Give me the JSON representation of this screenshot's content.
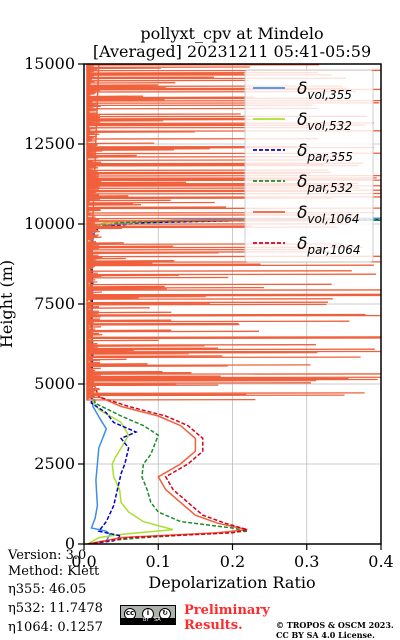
{
  "chart_data": {
    "type": "line",
    "title": "pollyxt_cpv at Mindelo",
    "subtitle": "[Averaged] 20231211 05:41-05:59",
    "xlabel": "Depolarization Ratio",
    "ylabel": "Height (m)",
    "xlim": [
      0.0,
      0.4
    ],
    "ylim": [
      0,
      15000
    ],
    "xticks": [
      "0.0",
      "0.1",
      "0.2",
      "0.3",
      "0.4"
    ],
    "yticks": [
      "0",
      "2500",
      "5000",
      "7500",
      "10000",
      "12500",
      "15000"
    ],
    "grid": true,
    "legend_position": "top-right",
    "series": [
      {
        "key": "vol355",
        "color": "#3b8fe5",
        "dash": "solid",
        "legend_base": "δ",
        "legend_sub": "vol,355",
        "points": [
          [
            0.005,
            0
          ],
          [
            0.03,
            100
          ],
          [
            0.035,
            300
          ],
          [
            0.03,
            400
          ],
          [
            0.01,
            500
          ],
          [
            0.015,
            800
          ],
          [
            0.018,
            1200
          ],
          [
            0.017,
            1600
          ],
          [
            0.016,
            2000
          ],
          [
            0.018,
            2500
          ],
          [
            0.02,
            3000
          ],
          [
            0.025,
            3300
          ],
          [
            0.03,
            3600
          ],
          [
            0.022,
            3900
          ],
          [
            0.012,
            4300
          ],
          [
            0.011,
            4700
          ],
          [
            0.011,
            5500
          ],
          [
            0.011,
            6500
          ],
          [
            0.011,
            7500
          ],
          [
            0.011,
            8500
          ],
          [
            0.011,
            9300
          ],
          [
            0.013,
            9700
          ],
          [
            0.02,
            9900
          ],
          [
            0.06,
            10050
          ],
          [
            0.12,
            10120
          ],
          [
            0.25,
            10160
          ],
          [
            0.4,
            10180
          ]
        ]
      },
      {
        "key": "vol532",
        "color": "#a8e030",
        "dash": "solid",
        "legend_base": "δ",
        "legend_sub": "vol,532",
        "points": [
          [
            0.005,
            0
          ],
          [
            0.02,
            200
          ],
          [
            0.05,
            300
          ],
          [
            0.12,
            450
          ],
          [
            0.08,
            700
          ],
          [
            0.06,
            1000
          ],
          [
            0.05,
            1300
          ],
          [
            0.048,
            1700
          ],
          [
            0.04,
            2100
          ],
          [
            0.038,
            2500
          ],
          [
            0.042,
            2700
          ],
          [
            0.05,
            3000
          ],
          [
            0.06,
            3400
          ],
          [
            0.05,
            3800
          ],
          [
            0.02,
            4200
          ],
          [
            0.008,
            4600
          ],
          [
            0.008,
            6000
          ],
          [
            0.008,
            8000
          ],
          [
            0.008,
            9500
          ],
          [
            0.009,
            9900
          ],
          [
            0.03,
            10050
          ],
          [
            0.15,
            10100
          ],
          [
            0.3,
            10120
          ],
          [
            0.4,
            10130
          ]
        ]
      },
      {
        "key": "par355",
        "color": "#0000d0",
        "dash": "dashed",
        "legend_base": "δ",
        "legend_sub": "par,355",
        "points": [
          [
            0.005,
            0
          ],
          [
            0.04,
            100
          ],
          [
            0.05,
            250
          ],
          [
            0.02,
            400
          ],
          [
            0.03,
            700
          ],
          [
            0.04,
            1200
          ],
          [
            0.045,
            1700
          ],
          [
            0.05,
            2200
          ],
          [
            0.055,
            2500
          ],
          [
            0.06,
            3000
          ],
          [
            0.05,
            3300
          ],
          [
            0.07,
            3500
          ],
          [
            0.04,
            3800
          ],
          [
            0.03,
            4100
          ],
          [
            0.01,
            4400
          ],
          [
            0.01,
            5000
          ],
          [
            0.012,
            6000
          ],
          [
            0.01,
            7000
          ],
          [
            0.012,
            8000
          ],
          [
            0.01,
            9000
          ],
          [
            0.011,
            9600
          ],
          [
            0.02,
            9900
          ],
          [
            0.08,
            10040
          ],
          [
            0.2,
            10100
          ],
          [
            0.4,
            10130
          ]
        ]
      },
      {
        "key": "par532",
        "color": "#1a8c2a",
        "dash": "dashed",
        "legend_base": "δ",
        "legend_sub": "par,532",
        "points": [
          [
            0.005,
            0
          ],
          [
            0.03,
            100
          ],
          [
            0.08,
            200
          ],
          [
            0.22,
            400
          ],
          [
            0.2,
            500
          ],
          [
            0.13,
            700
          ],
          [
            0.1,
            1000
          ],
          [
            0.09,
            1300
          ],
          [
            0.085,
            1700
          ],
          [
            0.078,
            2100
          ],
          [
            0.08,
            2500
          ],
          [
            0.09,
            2800
          ],
          [
            0.095,
            3100
          ],
          [
            0.1,
            3400
          ],
          [
            0.08,
            3700
          ],
          [
            0.05,
            4000
          ],
          [
            0.015,
            4400
          ],
          [
            0.01,
            5000
          ],
          [
            0.011,
            6500
          ],
          [
            0.009,
            8000
          ],
          [
            0.01,
            9500
          ],
          [
            0.012,
            9900
          ],
          [
            0.05,
            10050
          ],
          [
            0.2,
            10100
          ],
          [
            0.4,
            10120
          ]
        ]
      },
      {
        "key": "vol1064",
        "color": "#f0603c",
        "dash": "solid",
        "legend_base": "δ",
        "legend_sub": "vol,1064",
        "noisy": true,
        "points": [
          [
            0.005,
            0
          ],
          [
            0.05,
            200
          ],
          [
            0.18,
            350
          ],
          [
            0.22,
            450
          ],
          [
            0.18,
            650
          ],
          [
            0.15,
            900
          ],
          [
            0.13,
            1300
          ],
          [
            0.11,
            1700
          ],
          [
            0.1,
            2100
          ],
          [
            0.13,
            2500
          ],
          [
            0.15,
            2900
          ],
          [
            0.15,
            3300
          ],
          [
            0.13,
            3700
          ],
          [
            0.1,
            4000
          ],
          [
            0.05,
            4300
          ],
          [
            0.02,
            4600
          ],
          [
            0.01,
            5200
          ],
          [
            0.01,
            9000
          ],
          [
            0.015,
            12000
          ],
          [
            0.02,
            15000
          ]
        ]
      },
      {
        "key": "par1064",
        "color": "#d6001c",
        "dash": "dashed",
        "legend_base": "δ",
        "legend_sub": "par,1064",
        "points": [
          [
            0.005,
            0
          ],
          [
            0.06,
            200
          ],
          [
            0.2,
            350
          ],
          [
            0.22,
            450
          ],
          [
            0.19,
            650
          ],
          [
            0.16,
            900
          ],
          [
            0.14,
            1300
          ],
          [
            0.12,
            1700
          ],
          [
            0.11,
            2100
          ],
          [
            0.14,
            2500
          ],
          [
            0.16,
            2900
          ],
          [
            0.16,
            3300
          ],
          [
            0.14,
            3700
          ],
          [
            0.11,
            4000
          ],
          [
            0.06,
            4300
          ],
          [
            0.02,
            4600
          ],
          [
            0.01,
            5200
          ],
          [
            0.01,
            9000
          ]
        ]
      }
    ]
  },
  "footer": {
    "version": "Version: 3.0",
    "method": "Method: Klett",
    "eta355": "η355:  46.05",
    "eta532": "η532: 11.7478",
    "eta1064": "η1064: 0.1257",
    "preliminary_line1": "Preliminary",
    "preliminary_line2": "Results.",
    "copyright_line1": "© TROPOS & OSCM 2023.",
    "copyright_line2": "CC BY SA 4.0 License.",
    "license_badge_text": "BY   SA"
  }
}
